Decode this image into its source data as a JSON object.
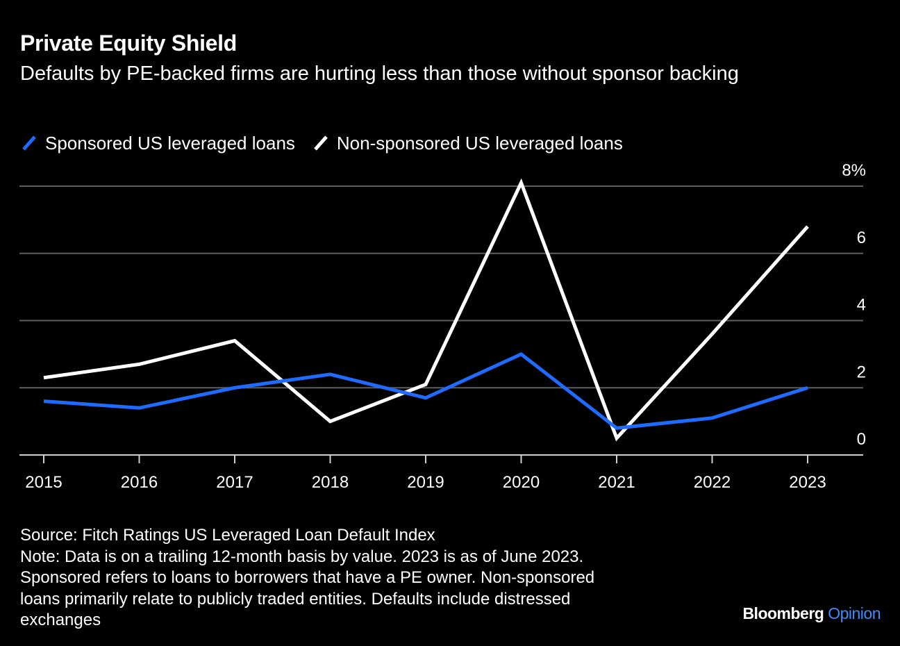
{
  "header": {
    "title": "Private Equity Shield",
    "subtitle": "Defaults by PE-backed firms are hurting less than those without sponsor backing"
  },
  "legend": {
    "items": [
      {
        "label": "Sponsored US leveraged loans",
        "color": "#1f6bff",
        "icon": "slash-swatch"
      },
      {
        "label": "Non-sponsored US leveraged loans",
        "color": "#ffffff",
        "icon": "slash-swatch"
      }
    ]
  },
  "chart_data": {
    "type": "line",
    "title": "Private Equity Shield",
    "subtitle": "Defaults by PE-backed firms are hurting less than those without sponsor backing",
    "x": [
      "2015",
      "2016",
      "2017",
      "2018",
      "2019",
      "2020",
      "2021",
      "2022",
      "2023"
    ],
    "series": [
      {
        "name": "Sponsored US leveraged loans",
        "color": "#1f6bff",
        "values": [
          1.6,
          1.4,
          2.0,
          2.4,
          1.7,
          3.0,
          0.8,
          1.1,
          2.0
        ]
      },
      {
        "name": "Non-sponsored US leveraged loans",
        "color": "#ffffff",
        "values": [
          2.3,
          2.7,
          3.4,
          1.0,
          2.1,
          8.1,
          0.5,
          3.6,
          6.8
        ]
      }
    ],
    "ylim": [
      0,
      8
    ],
    "yticks": [
      {
        "value": 0,
        "label": "0"
      },
      {
        "value": 2,
        "label": "2"
      },
      {
        "value": 4,
        "label": "4"
      },
      {
        "value": 6,
        "label": "6"
      },
      {
        "value": 8,
        "label": "8%"
      }
    ],
    "xlabel": "",
    "ylabel": "",
    "y_axis_side": "right",
    "grid": true,
    "legend_position": "top-left"
  },
  "footer": {
    "source": "Source: Fitch Ratings US Leveraged Loan Default Index",
    "notes": [
      "Note: Data is on a trailing 12-month basis by value. 2023 is as of June 2023.",
      "Sponsored refers to loans to borrowers that have a PE owner. Non-sponsored",
      "loans primarily relate to publicly traded entities. Defaults include distressed",
      "exchanges"
    ],
    "brand_name": "Bloomberg",
    "brand_accent": "Opinion"
  }
}
